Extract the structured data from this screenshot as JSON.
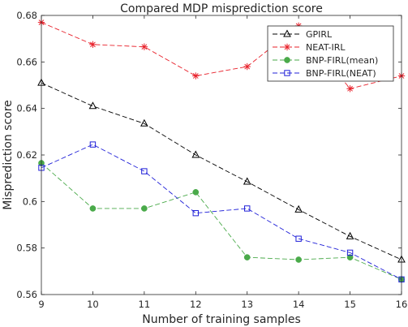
{
  "chart_data": {
    "type": "line",
    "title": "Compared MDP misprediction score",
    "xlabel": "Number of training samples",
    "ylabel": "Misprediction score",
    "x": [
      9,
      10,
      11,
      12,
      13,
      14,
      15,
      16
    ],
    "xlim": [
      9,
      16
    ],
    "ylim": [
      0.56,
      0.68
    ],
    "xticks": [
      "9",
      "10",
      "11",
      "12",
      "13",
      "14",
      "15",
      "16"
    ],
    "yticks": [
      "0.56",
      "0.58",
      "0.6",
      "0.62",
      "0.64",
      "0.66",
      "0.68"
    ],
    "grid": false,
    "legend_position": "top-right",
    "series": [
      {
        "name": "GPIRL",
        "color": "#000000",
        "marker": "triangle-open",
        "line_style": "dashed",
        "values": [
          0.651,
          0.641,
          0.6335,
          0.62,
          0.6085,
          0.5965,
          0.585,
          0.575
        ]
      },
      {
        "name": "NEAT-IRL",
        "color": "#e8202a",
        "marker": "asterisk",
        "line_style": "dashed",
        "values": [
          0.677,
          0.6675,
          0.6665,
          0.654,
          0.658,
          0.6755,
          0.6485,
          0.654
        ]
      },
      {
        "name": "BNP-FIRL(mean)",
        "color": "#4aaa4a",
        "marker": "circle-filled",
        "line_style": "dashed",
        "values": [
          0.6165,
          0.597,
          0.597,
          0.604,
          0.576,
          0.575,
          0.576,
          0.5665
        ]
      },
      {
        "name": "BNP-FIRL(NEAT)",
        "color": "#2020d8",
        "marker": "square-open",
        "line_style": "dashed",
        "values": [
          0.6145,
          0.6245,
          0.613,
          0.595,
          0.597,
          0.584,
          0.578,
          0.5665
        ]
      }
    ]
  }
}
